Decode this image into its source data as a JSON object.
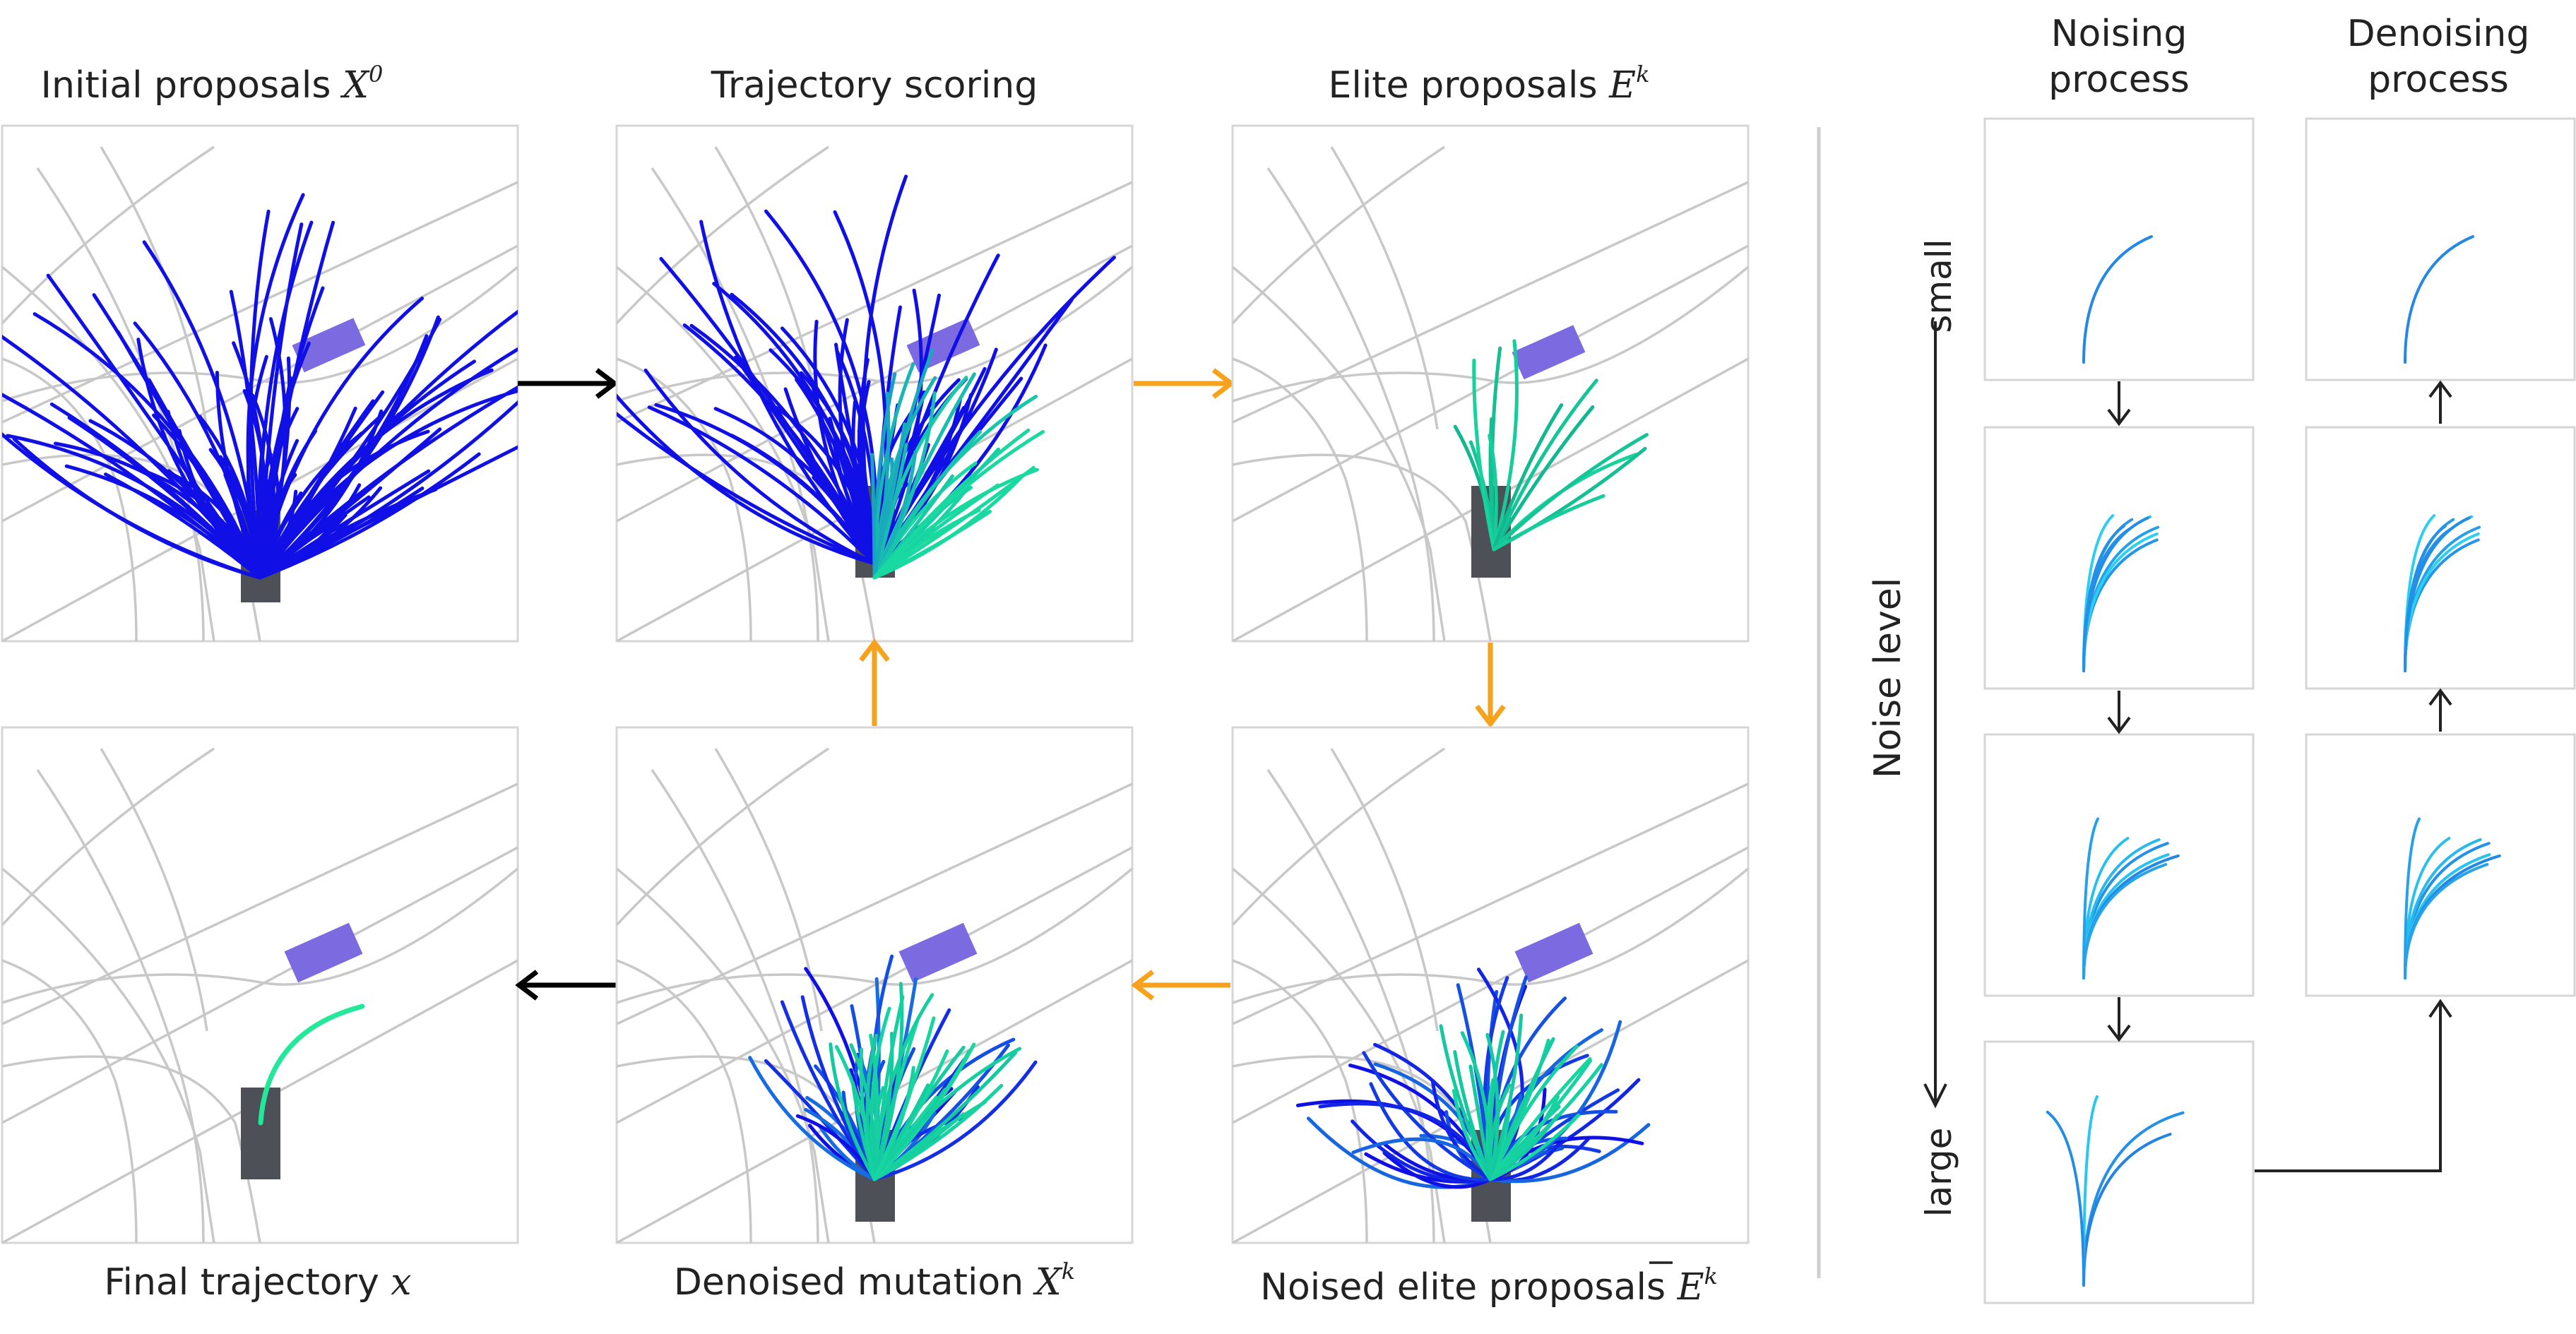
{
  "panels": {
    "initial": {
      "title_text": "Initial proposals ",
      "title_sym": "X",
      "title_sup": "0"
    },
    "scoring": {
      "title_text": "Trajectory scoring"
    },
    "elite": {
      "title_text": "Elite proposals ",
      "title_sym": "E",
      "title_sup": "k"
    },
    "final": {
      "title_text": "Final trajectory ",
      "title_sym": "x"
    },
    "denoised": {
      "title_text": "Denoised mutation ",
      "title_sym": "X",
      "title_sup": "k"
    },
    "noised": {
      "title_text": "Noised elite proposals ",
      "title_sym": "E",
      "title_sup": "k"
    }
  },
  "side": {
    "noising_line1": "Noising",
    "noising_line2": "process",
    "denoising_line1": "Denoising",
    "denoising_line2": "process",
    "axis_label": "Noise level",
    "axis_small": "small",
    "axis_large": "large"
  },
  "colors": {
    "proposal_blue": "#1010e6",
    "elite_green": "#18d9a0",
    "final_green": "#22e89a",
    "ego_vehicle": "#4d5056",
    "agent_vehicle": "#7b6ae0",
    "road_line": "#c8c8c8",
    "flow_arrow_black": "#000000",
    "flow_arrow_orange": "#f7a21c"
  }
}
